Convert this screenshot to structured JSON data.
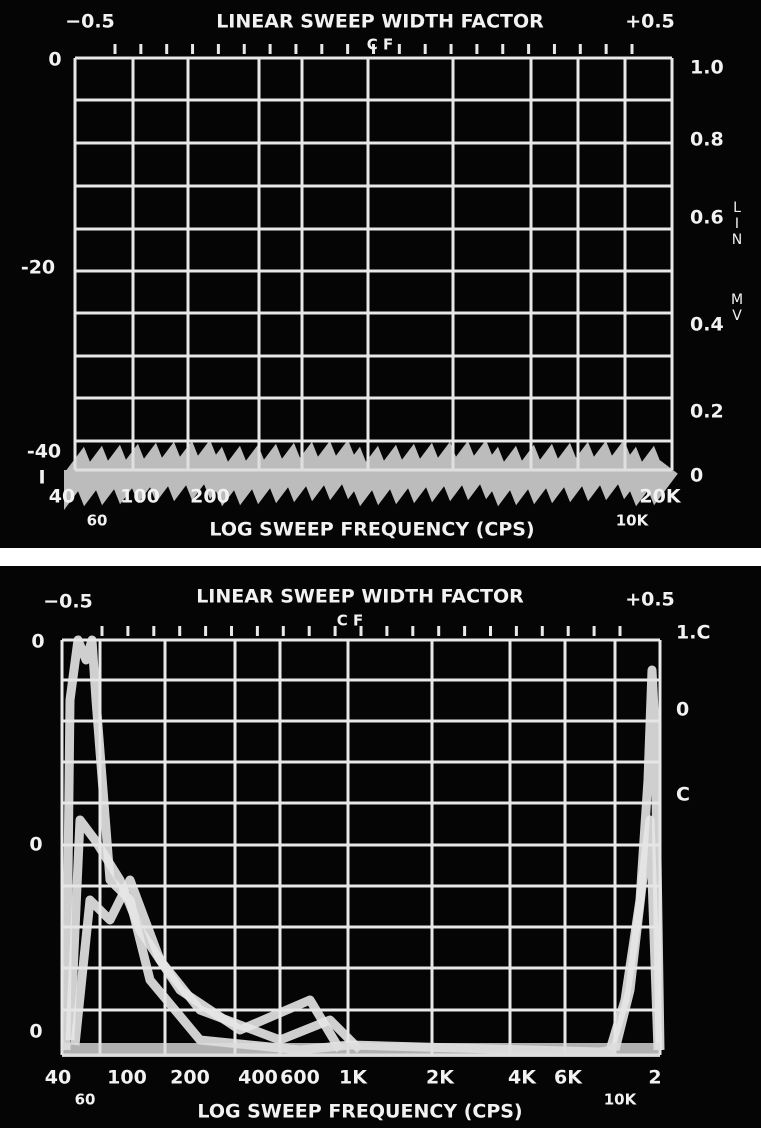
{
  "panels": [
    {
      "top_left": "−0.5",
      "top_title": "LINEAR SWEEP WIDTH FACTOR",
      "center": "C F",
      "top_right": "+0.5",
      "left_ticks": [
        "0",
        "-20",
        "-40",
        "I"
      ],
      "right_ticks": [
        "1.0",
        "0.8",
        "0.6",
        "0.4",
        "0.2",
        "0"
      ],
      "side_label": [
        "LIN",
        "MV"
      ],
      "x_ticks": [
        "40",
        "100",
        "200",
        "20K"
      ],
      "x_ticks_lower": [
        "60",
        "10K"
      ],
      "x_title": "LOG SWEEP FREQUENCY (CPS)"
    },
    {
      "top_left": "−0.5",
      "top_title": "LINEAR SWEEP WIDTH FACTOR",
      "center": "C F",
      "top_right": "+0.5",
      "left_ticks": [
        "0",
        "0",
        "0"
      ],
      "right_ticks": [
        "1.C",
        "0",
        "C"
      ],
      "side_label": [],
      "x_ticks": [
        "40",
        "100",
        "200",
        "400",
        "600",
        "1K",
        "2K",
        "4K",
        "6K",
        "2"
      ],
      "x_ticks_lower": [
        "60",
        "10K"
      ],
      "x_title": "LOG SWEEP FREQUENCY (CPS)"
    }
  ]
}
